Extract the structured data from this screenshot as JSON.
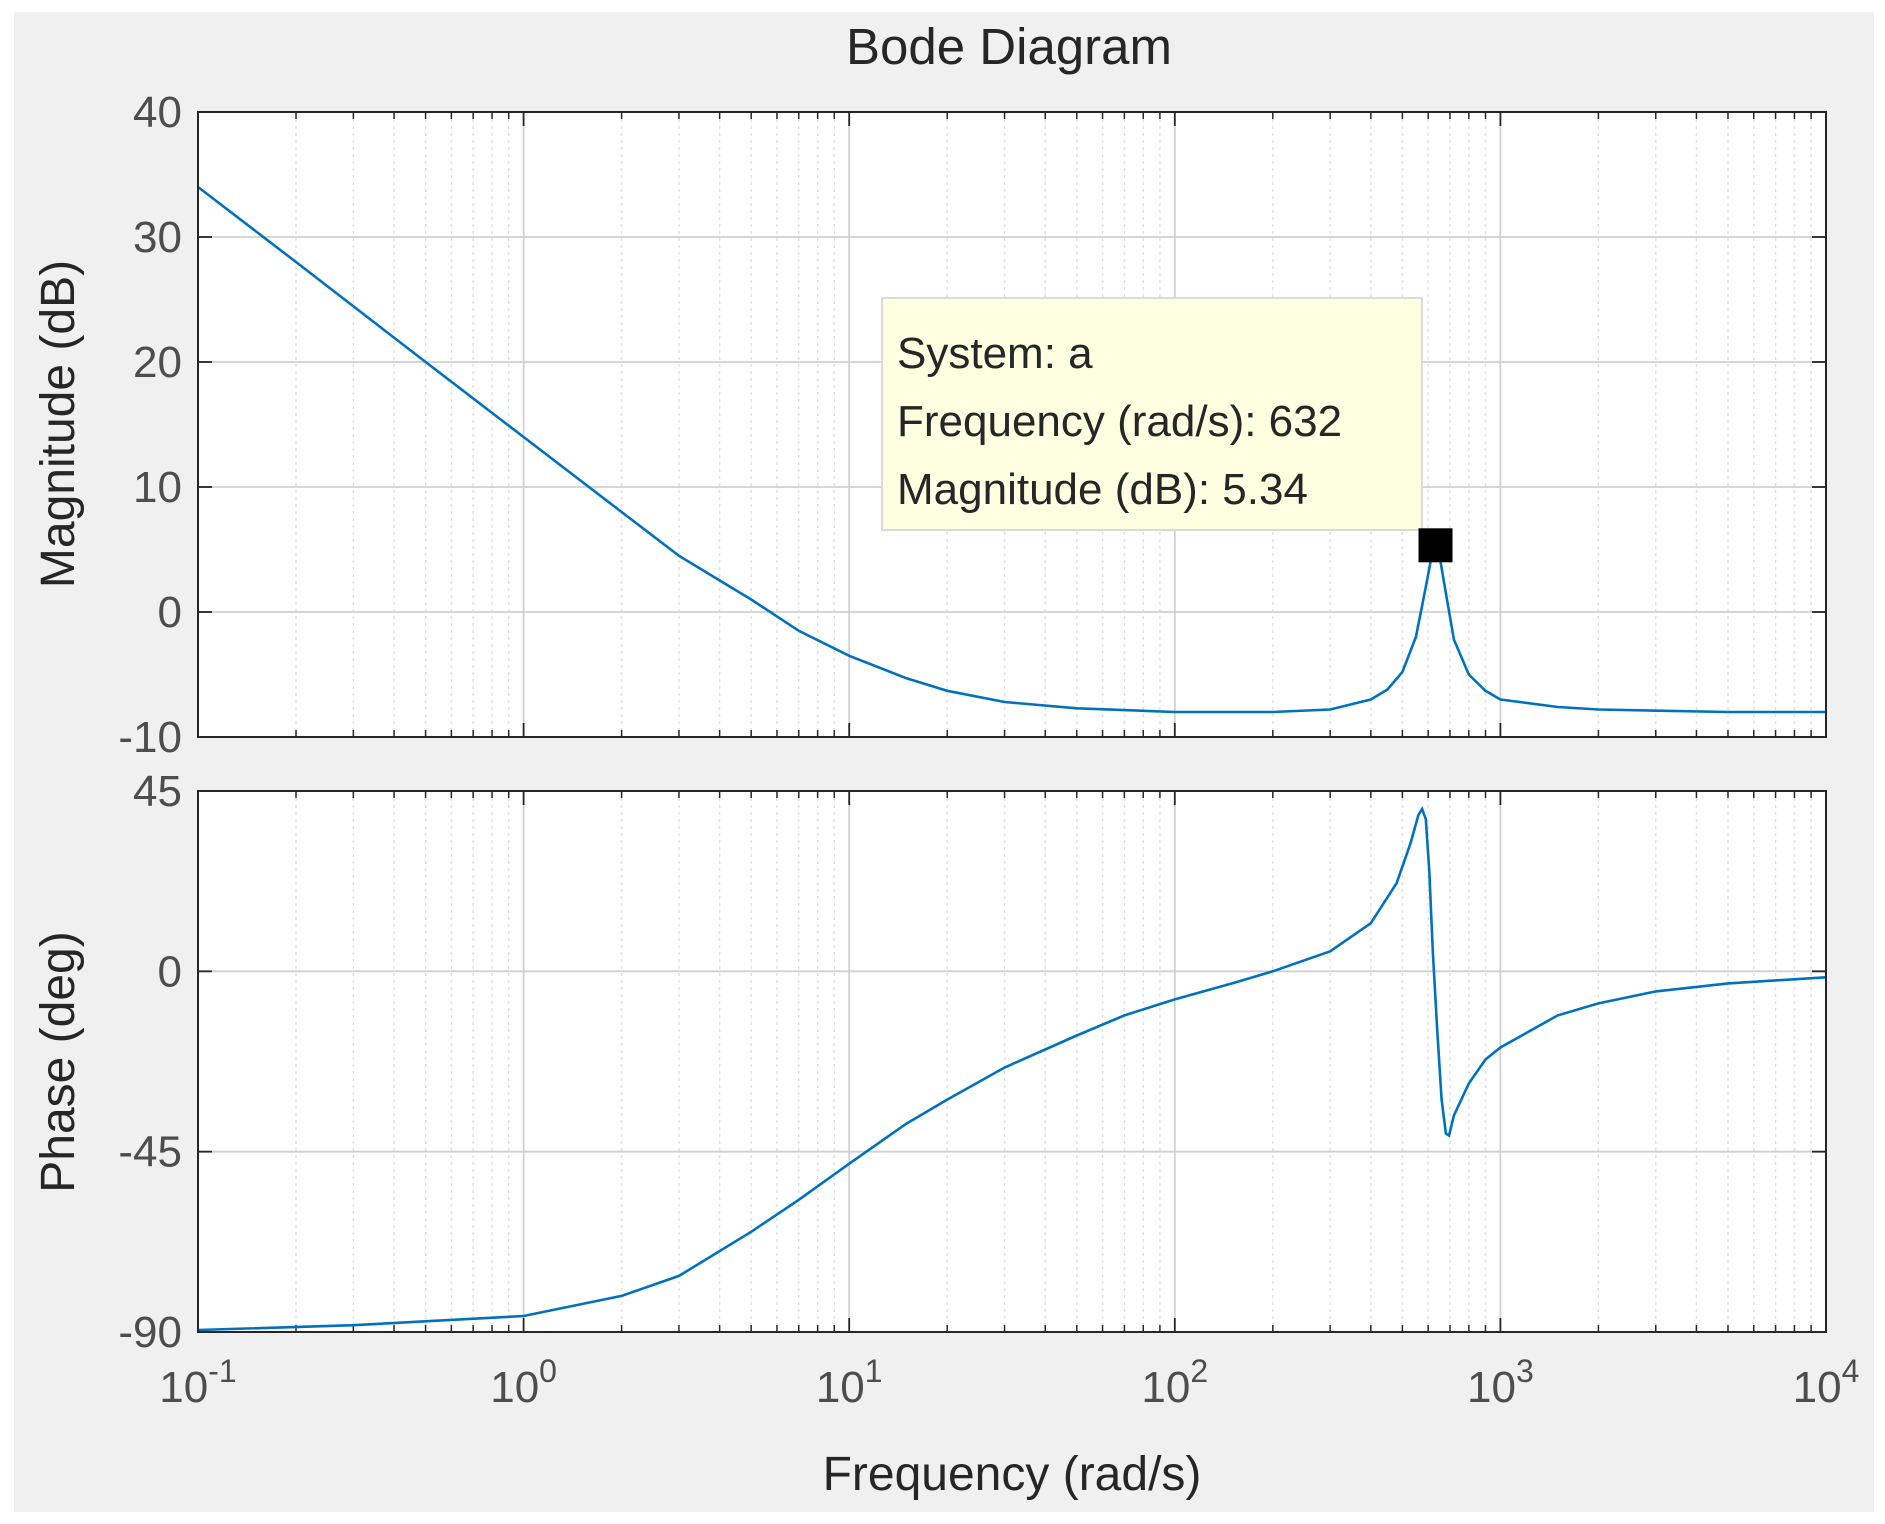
{
  "chart_data": {
    "type": "line",
    "title": "Bode Diagram",
    "xlabel": "Frequency  (rad/s)",
    "x_scale": "log",
    "xlim": [
      0.1,
      10000
    ],
    "x_ticks": [
      {
        "value": 0.1,
        "base": "10",
        "exp": "-1"
      },
      {
        "value": 1,
        "base": "10",
        "exp": "0"
      },
      {
        "value": 10,
        "base": "10",
        "exp": "1"
      },
      {
        "value": 100,
        "base": "10",
        "exp": "2"
      },
      {
        "value": 1000,
        "base": "10",
        "exp": "3"
      },
      {
        "value": 10000,
        "base": "10",
        "exp": "4"
      }
    ],
    "grid": true,
    "line_color": "#0072bd",
    "panels": [
      {
        "name": "magnitude",
        "ylabel": "Magnitude (dB)",
        "ylim": [
          -10,
          40
        ],
        "y_ticks": [
          40,
          30,
          20,
          10,
          0,
          -10
        ],
        "series": {
          "name": "a",
          "points": [
            [
              0.1,
              34.0
            ],
            [
              0.2,
              28.0
            ],
            [
              0.5,
              20.0
            ],
            [
              1,
              14.0
            ],
            [
              2,
              8.0
            ],
            [
              3,
              4.5
            ],
            [
              5,
              1.0
            ],
            [
              7,
              -1.5
            ],
            [
              10,
              -3.5
            ],
            [
              15,
              -5.3
            ],
            [
              20,
              -6.3
            ],
            [
              30,
              -7.2
            ],
            [
              50,
              -7.7
            ],
            [
              100,
              -8.0
            ],
            [
              200,
              -8.0
            ],
            [
              300,
              -7.8
            ],
            [
              400,
              -7.0
            ],
            [
              450,
              -6.2
            ],
            [
              500,
              -4.8
            ],
            [
              550,
              -2.0
            ],
            [
              590,
              2.0
            ],
            [
              610,
              4.0
            ],
            [
              632,
              5.34
            ],
            [
              655,
              4.0
            ],
            [
              680,
              1.5
            ],
            [
              720,
              -2.2
            ],
            [
              800,
              -5.0
            ],
            [
              900,
              -6.3
            ],
            [
              1000,
              -7.0
            ],
            [
              1500,
              -7.6
            ],
            [
              2000,
              -7.8
            ],
            [
              5000,
              -8.0
            ],
            [
              10000,
              -8.0
            ]
          ]
        }
      },
      {
        "name": "phase",
        "ylabel": "Phase (deg)",
        "ylim": [
          -90,
          45
        ],
        "y_ticks": [
          45,
          0,
          -45,
          -90
        ],
        "series": {
          "name": "a",
          "points": [
            [
              0.1,
              -89.5
            ],
            [
              0.3,
              -88.3
            ],
            [
              1,
              -86.0
            ],
            [
              2,
              -81.0
            ],
            [
              3,
              -76.0
            ],
            [
              5,
              -65.0
            ],
            [
              7,
              -57.0
            ],
            [
              10,
              -48.0
            ],
            [
              15,
              -38.0
            ],
            [
              20,
              -32.0
            ],
            [
              30,
              -24.0
            ],
            [
              50,
              -16.0
            ],
            [
              70,
              -11.0
            ],
            [
              100,
              -7.0
            ],
            [
              150,
              -3.0
            ],
            [
              200,
              0.0
            ],
            [
              300,
              5.0
            ],
            [
              400,
              12.0
            ],
            [
              480,
              22.0
            ],
            [
              530,
              32.0
            ],
            [
              560,
              39.0
            ],
            [
              575,
              40.5
            ],
            [
              590,
              38.0
            ],
            [
              605,
              25.0
            ],
            [
              620,
              5.0
            ],
            [
              640,
              -15.0
            ],
            [
              660,
              -32.0
            ],
            [
              680,
              -40.5
            ],
            [
              695,
              -41.0
            ],
            [
              720,
              -36.0
            ],
            [
              800,
              -28.0
            ],
            [
              900,
              -22.0
            ],
            [
              1000,
              -19.0
            ],
            [
              1500,
              -11.0
            ],
            [
              2000,
              -8.0
            ],
            [
              3000,
              -5.0
            ],
            [
              5000,
              -3.0
            ],
            [
              10000,
              -1.5
            ]
          ]
        }
      }
    ],
    "datatip": {
      "lines": [
        "System: a",
        "Frequency (rad/s): 632",
        "Magnitude (dB): 5.34"
      ],
      "frequency": 632,
      "magnitude_db": 5.34
    }
  }
}
